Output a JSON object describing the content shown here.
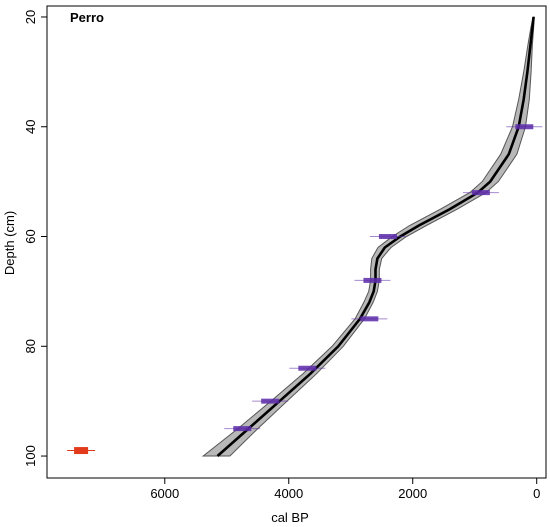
{
  "chart_data": {
    "type": "line",
    "title": "",
    "core_label": "Perro",
    "xlabel": "cal BP",
    "ylabel": "Depth (cm)",
    "x_reversed": true,
    "y_reversed": true,
    "xlim": [
      7900,
      -150
    ],
    "ylim": [
      18,
      104
    ],
    "x_ticks": [
      6000,
      4000,
      2000,
      0
    ],
    "y_ticks": [
      20,
      40,
      60,
      80,
      100
    ],
    "x_tick_labels": [
      "6000",
      "4000",
      "2000",
      "0"
    ],
    "y_tick_labels": [
      "20",
      "40",
      "60",
      "80",
      "100"
    ],
    "grid": false,
    "colors": {
      "median_line": "#000000",
      "envelope_fill": "#b8b8b8",
      "envelope_stroke": "#555555",
      "date_marker": "#5a2aa8",
      "outlier_marker": "#e23a1a"
    },
    "age_depth_model": {
      "depth": [
        20,
        22,
        25,
        30,
        35,
        40,
        45,
        50,
        52,
        55,
        58,
        60,
        62,
        64,
        66,
        68,
        70,
        72,
        75,
        80,
        85,
        90,
        95,
        100
      ],
      "median_age": [
        50,
        70,
        100,
        150,
        210,
        290,
        450,
        750,
        950,
        1400,
        1900,
        2200,
        2450,
        2570,
        2600,
        2600,
        2630,
        2700,
        2850,
        3200,
        3650,
        4150,
        4650,
        5150
      ],
      "min_age": [
        40,
        50,
        70,
        90,
        120,
        180,
        320,
        620,
        820,
        1280,
        1780,
        2100,
        2350,
        2500,
        2540,
        2540,
        2570,
        2640,
        2780,
        3120,
        3550,
        4030,
        4500,
        4950
      ],
      "max_age": [
        60,
        95,
        140,
        210,
        290,
        390,
        580,
        880,
        1080,
        1550,
        2050,
        2330,
        2560,
        2660,
        2680,
        2680,
        2710,
        2790,
        2930,
        3300,
        3770,
        4290,
        4820,
        5380
      ]
    },
    "dates": [
      {
        "depth": 40,
        "age": 200
      },
      {
        "depth": 52,
        "age": 900
      },
      {
        "depth": 60,
        "age": 2400
      },
      {
        "depth": 68,
        "age": 2650
      },
      {
        "depth": 75,
        "age": 2700
      },
      {
        "depth": 84,
        "age": 3700
      },
      {
        "depth": 90,
        "age": 4300
      },
      {
        "depth": 95,
        "age": 4750
      }
    ],
    "outliers": [
      {
        "depth": 99,
        "age": 7350
      }
    ]
  }
}
